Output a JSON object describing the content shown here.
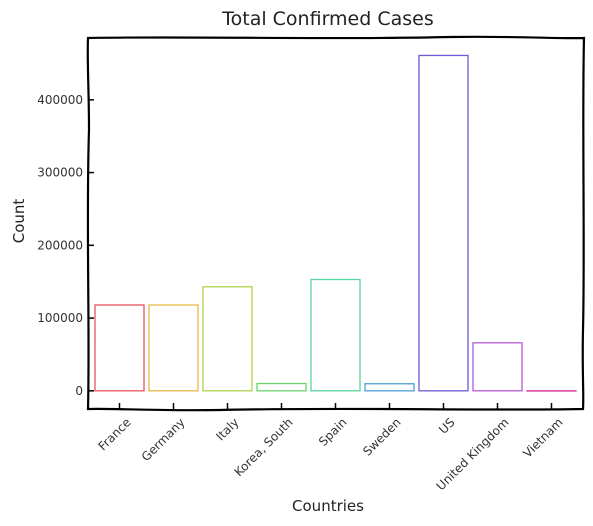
{
  "chart_data": {
    "type": "bar",
    "title": "Total Confirmed Cases",
    "xlabel": "Countries",
    "ylabel": "Count",
    "categories": [
      "France",
      "Germany",
      "Italy",
      "Korea, South",
      "Spain",
      "Sweden",
      "US",
      "United Kingdom",
      "Vietnam"
    ],
    "values": [
      118000,
      118000,
      143000,
      10000,
      153000,
      9700,
      461000,
      66000,
      250
    ],
    "colors": [
      "#e8545a",
      "#e8b94a",
      "#b0d44a",
      "#6bd46b",
      "#5ad4a0",
      "#4aa0d4",
      "#6a5ad4",
      "#b45ad4",
      "#e05ab0"
    ],
    "yticks": [
      0,
      100000,
      200000,
      300000,
      400000
    ],
    "ytick_labels": [
      "0",
      "100000",
      "200000",
      "300000",
      "400000"
    ],
    "ylim": [
      -25000,
      485000
    ],
    "grid": false,
    "legend": false
  }
}
